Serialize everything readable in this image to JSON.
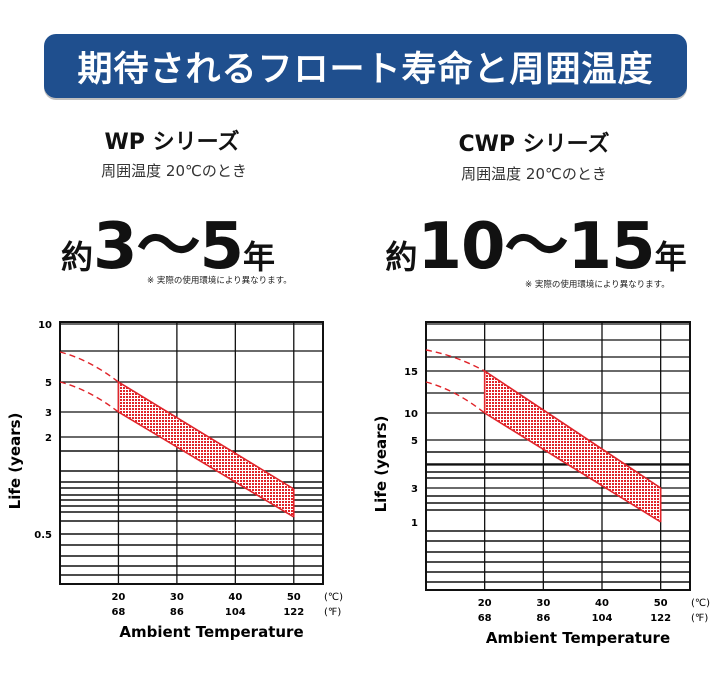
{
  "header": {
    "title": "期待されるフロート寿命と周囲温度"
  },
  "panels": [
    {
      "title": "WP シリーズ",
      "subtitle": "周囲温度 20℃のとき",
      "life_prefix": "約",
      "life_range": "3～5",
      "life_suffix": "年",
      "note": "※ 実際の使用環境により異なります。"
    },
    {
      "title": "CWP シリーズ",
      "subtitle": "周囲温度 20℃のとき",
      "life_prefix": "約",
      "life_range": "10～15",
      "life_suffix": "年",
      "note": "※ 実際の使用環境により異なります。"
    }
  ],
  "colors": {
    "banner": "#1f4f8e",
    "band": "#e0242a",
    "grid": "#111111"
  },
  "chart_data": [
    {
      "type": "area",
      "ylabel": "Life (years)",
      "xlabel": "Ambient Temperature",
      "x_unit_c": "(℃)",
      "x_unit_f": "(℉)",
      "x_ticks": [
        20,
        30,
        40,
        50
      ],
      "x_ticks_f": [
        "68",
        "86",
        "104",
        "122"
      ],
      "xlim": [
        10,
        55
      ],
      "y_ticks": [
        {
          "value": 10,
          "label": "10"
        },
        {
          "value": 5,
          "label": "5"
        },
        {
          "value": 3,
          "label": "3"
        },
        {
          "value": 2,
          "label": "2"
        },
        {
          "value": 0.5,
          "label": "0.5"
        }
      ],
      "series": [
        {
          "x": [
            20,
            50
          ],
          "values": [
            5,
            1.2
          ]
        },
        {
          "x": [
            20,
            50
          ],
          "values": [
            3,
            0.6
          ]
        }
      ],
      "extrapolated": [
        {
          "x": [
            10,
            20
          ],
          "values": [
            7,
            5
          ]
        },
        {
          "x": [
            10,
            20
          ],
          "values": [
            5,
            3
          ]
        }
      ]
    },
    {
      "type": "area",
      "ylabel": "Life (years)",
      "xlabel": "Ambient Temperature",
      "x_unit_c": "(℃)",
      "x_unit_f": "(℉)",
      "x_ticks": [
        20,
        30,
        40,
        50
      ],
      "x_ticks_f": [
        "68",
        "86",
        "104",
        "122"
      ],
      "xlim": [
        10,
        55
      ],
      "y_ticks": [
        {
          "value": 15,
          "label": "15"
        },
        {
          "value": 10,
          "label": "10"
        },
        {
          "value": 5,
          "label": "5"
        },
        {
          "value": 3,
          "label": "3"
        },
        {
          "value": 1,
          "label": "1"
        }
      ],
      "series": [
        {
          "x": [
            20,
            50
          ],
          "values": [
            15,
            3
          ]
        },
        {
          "x": [
            20,
            50
          ],
          "values": [
            10,
            1
          ]
        }
      ],
      "extrapolated": [
        {
          "x": [
            10,
            20
          ],
          "values": [
            17,
            15
          ]
        },
        {
          "x": [
            10,
            20
          ],
          "values": [
            13,
            10
          ]
        }
      ]
    }
  ]
}
